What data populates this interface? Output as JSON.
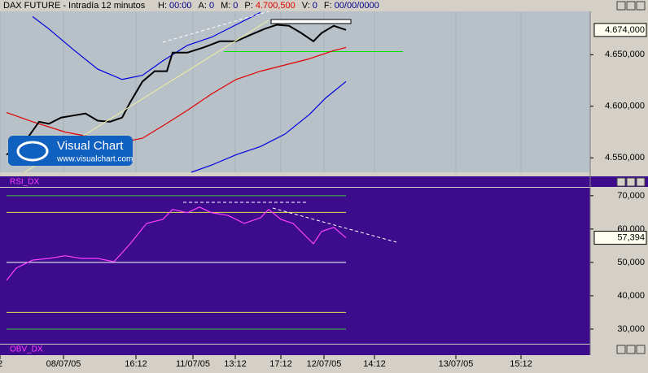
{
  "header": {
    "title": "DAX FUTURE - Intradía 12 minutos",
    "fields": [
      {
        "label": "H:",
        "value": "00:00",
        "color": "#00008b"
      },
      {
        "label": "A:",
        "value": "0",
        "color": "#00008b"
      },
      {
        "label": "M:",
        "value": "0",
        "color": "#00008b"
      },
      {
        "label": "P:",
        "value": "4.700,500",
        "color": "#e00000"
      },
      {
        "label": "V:",
        "value": "0",
        "color": "#00008b"
      },
      {
        "label": "F:",
        "value": "00/00/0000",
        "color": "#00008b"
      }
    ]
  },
  "watermark": {
    "title": "Visual Chart",
    "url": "www.visualchart.com"
  },
  "lower_panel": "OBV_DX",
  "chart_data": [
    {
      "type": "line",
      "xlim": [
        0,
        725
      ],
      "ylim": [
        4536,
        4692
      ],
      "yticks": [
        {
          "value": 4550,
          "label": "4.550,000"
        },
        {
          "value": 4600,
          "label": "4.600,000"
        },
        {
          "value": 4650,
          "label": "4.650,000"
        }
      ],
      "xticks": [
        {
          "value": 0,
          "label": "2"
        },
        {
          "value": 78,
          "label": "08/07/05"
        },
        {
          "value": 167,
          "label": "16:12"
        },
        {
          "value": 237,
          "label": "11/07/05"
        },
        {
          "value": 289,
          "label": "13:12"
        },
        {
          "value": 345,
          "label": "17:12"
        },
        {
          "value": 398,
          "label": "12/07/05"
        },
        {
          "value": 460,
          "label": "14:12"
        },
        {
          "value": 560,
          "label": "13/07/05"
        },
        {
          "value": 640,
          "label": "15:12"
        }
      ],
      "last_value": {
        "value": 4674,
        "label": "4.674,000"
      },
      "reference_lines": [
        {
          "value": 4653,
          "x": [
            275,
            495
          ],
          "color": "#00e000"
        }
      ],
      "series": [
        {
          "color": "#0000e0",
          "x": [
            40,
            60,
            90,
            120,
            150,
            175,
            200,
            230,
            260,
            290,
            320
          ],
          "values": [
            4687,
            4675,
            4655,
            4636,
            4626,
            4630,
            4644,
            4659,
            4667,
            4679,
            4691
          ]
        },
        {
          "color": "#0000e0",
          "x": [
            235,
            260,
            290,
            320,
            350,
            380,
            400,
            425
          ],
          "values": [
            4536,
            4543,
            4553,
            4561,
            4573,
            4592,
            4608,
            4624
          ]
        },
        {
          "color": "#e00000",
          "x": [
            8,
            40,
            80,
            120,
            150,
            175,
            200,
            230,
            260,
            290,
            320,
            350,
            380,
            410,
            425
          ],
          "values": [
            4594,
            4585,
            4575,
            4569,
            4565,
            4569,
            4581,
            4596,
            4612,
            4626,
            4634,
            4640,
            4646,
            4654,
            4657
          ]
        },
        {
          "color": "#000000",
          "x": [
            8,
            30,
            48,
            60,
            75,
            90,
            105,
            120,
            135,
            150,
            160,
            175,
            190,
            205,
            212,
            230,
            250,
            270,
            290,
            310,
            325,
            340,
            355,
            370,
            385,
            395,
            410,
            425
          ],
          "values": [
            4553,
            4565,
            4585,
            4583,
            4589,
            4591,
            4593,
            4586,
            4585,
            4589,
            4604,
            4624,
            4634,
            4634,
            4652,
            4652,
            4657,
            4663,
            4663,
            4670,
            4675,
            4679,
            4678,
            4671,
            4663,
            4671,
            4678,
            4674
          ]
        }
      ]
    },
    {
      "type": "line",
      "title": "RSI_DX",
      "xlim": [
        0,
        725
      ],
      "ylim": [
        25.6,
        72.4
      ],
      "yticks": [
        {
          "value": 30,
          "label": "30,000"
        },
        {
          "value": 40,
          "label": "40,000"
        },
        {
          "value": 50,
          "label": "50,000"
        },
        {
          "value": 60,
          "label": "60,000"
        },
        {
          "value": 70,
          "label": "70,000"
        }
      ],
      "last_value": {
        "value": 57.394,
        "label": "57,394"
      },
      "levels": [
        {
          "value": 70,
          "color": "#40c040"
        },
        {
          "value": 65,
          "color": "#e0e040"
        },
        {
          "value": 50,
          "color": "#ffffff"
        },
        {
          "value": 35,
          "color": "#e0e040"
        },
        {
          "value": 30,
          "color": "#40c040"
        }
      ],
      "series": [
        {
          "color": "#ff40ff",
          "x": [
            8,
            20,
            40,
            60,
            80,
            100,
            120,
            140,
            160,
            180,
            200,
            212,
            230,
            245,
            260,
            280,
            300,
            320,
            330,
            345,
            360,
            375,
            385,
            395,
            410,
            425
          ],
          "values": [
            44.6,
            48.3,
            50.7,
            51.2,
            52,
            51.2,
            51.2,
            50.2,
            55.6,
            61.7,
            62.9,
            65.9,
            64.9,
            66.6,
            64.9,
            64.1,
            61.7,
            63.4,
            65.9,
            62.9,
            61.7,
            58,
            55.6,
            59.3,
            60.5,
            57.394
          ]
        }
      ]
    }
  ]
}
